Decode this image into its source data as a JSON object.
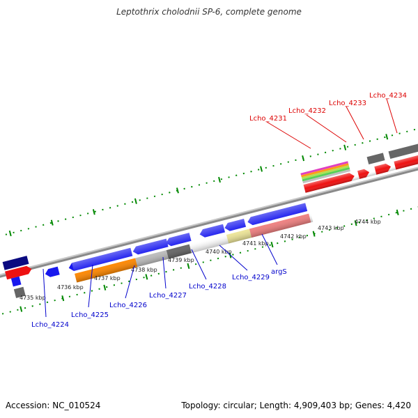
{
  "title": "Leptothrix cholodnii SP-6, complete genome",
  "footer": {
    "accession": "Accession: NC_010524",
    "topology": "Topology: circular; Length: 4,909,403 bp; Genes: 4,420"
  },
  "scale": {
    "unit": "kbp",
    "ticks": [
      "4735 kbp",
      "4736 kbp",
      "4737 kbp",
      "4738 kbp",
      "4739 kbp",
      "4740 kbp",
      "4741 kbp",
      "4742 kbp",
      "4743 kbp",
      "4744 kbp"
    ]
  },
  "colors": {
    "forward_label": "#dd0000",
    "reverse_label": "#0000cc",
    "tick": "#008800",
    "backbone": "#888888"
  },
  "forward_labels": [
    "Lcho_4231",
    "Lcho_4232",
    "Lcho_4233",
    "Lcho_4234"
  ],
  "reverse_labels": [
    "Lcho_4224",
    "Lcho_4225",
    "Lcho_4226",
    "Lcho_4227",
    "Lcho_4228",
    "Lcho_4229",
    "argS"
  ]
}
